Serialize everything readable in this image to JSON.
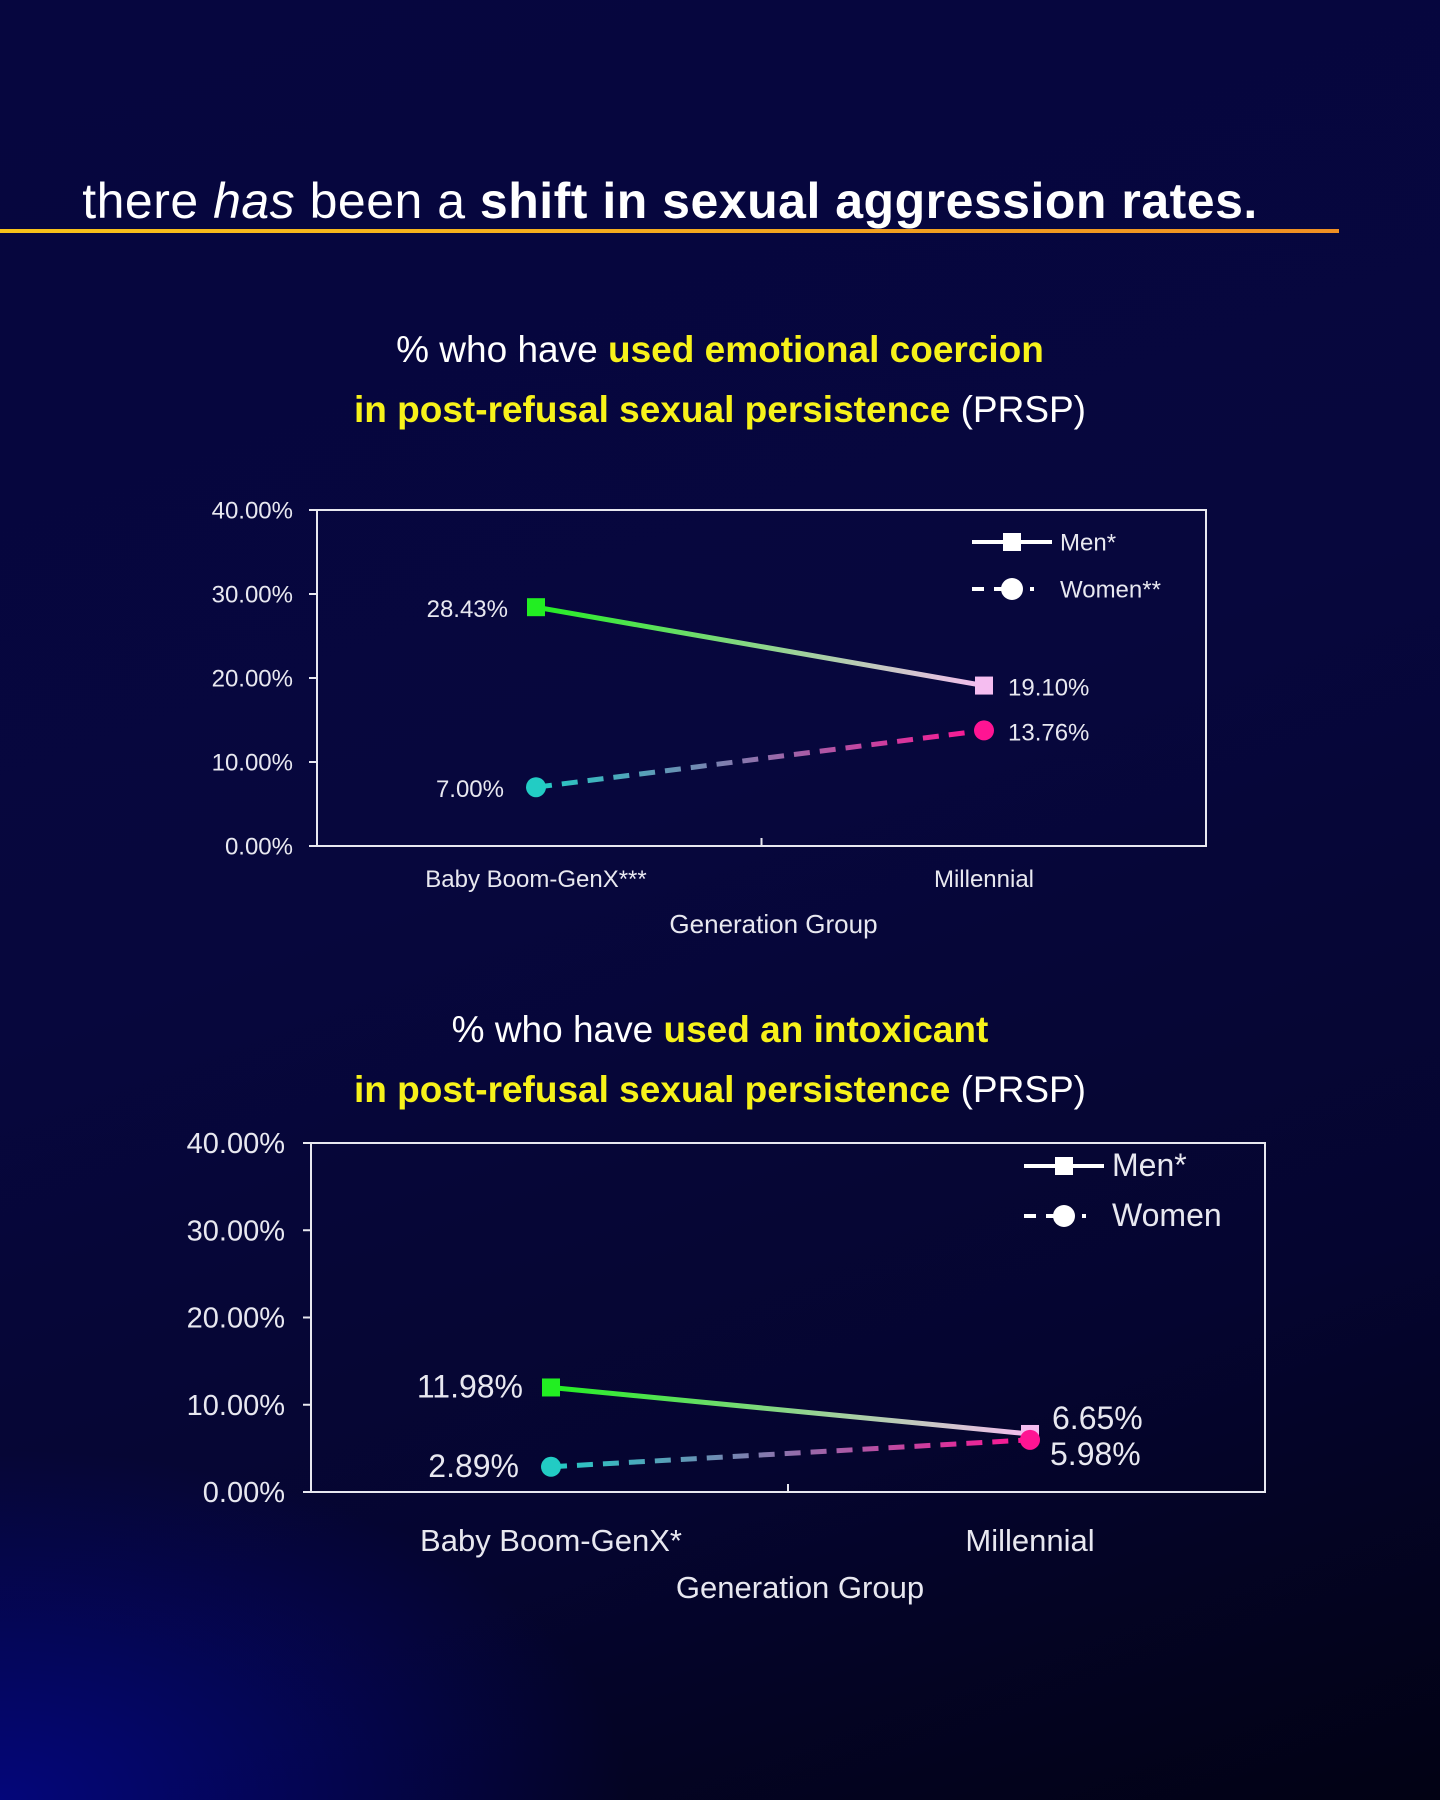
{
  "heading": {
    "pre": "there ",
    "italic": "has",
    "mid": " been a ",
    "bold": "shift in sexual aggression rates."
  },
  "colors": {
    "men_start": "#22ee22",
    "men_end": "#f5bdf0",
    "women_start": "#22ccc4",
    "women_end": "#ff1493",
    "underline": "#f2a41f",
    "highlight": "#f7f21a"
  },
  "chart_data": [
    {
      "type": "line",
      "title_parts": {
        "pre": "% who have ",
        "hl1": "used emotional coercion",
        "hl2": "in post-refusal sexual persistence",
        "post": " (PRSP)"
      },
      "categories": [
        "Baby Boom-GenX***",
        "Millennial"
      ],
      "xlabel": "Generation Group",
      "ylabel": "",
      "ylim": [
        0,
        40
      ],
      "yticks": [
        "0.00%",
        "10.00%",
        "20.00%",
        "30.00%",
        "40.00%"
      ],
      "legend_position": "top-right",
      "series": [
        {
          "name": "Men*",
          "values": [
            28.43,
            19.1
          ],
          "labels": [
            "28.43%",
            "19.10%"
          ],
          "style": "solid-square"
        },
        {
          "name": "Women**",
          "values": [
            7.0,
            13.76
          ],
          "labels": [
            "7.00%",
            "13.76%"
          ],
          "style": "dashed-circle"
        }
      ]
    },
    {
      "type": "line",
      "title_parts": {
        "pre": "% who have ",
        "hl1": "used an intoxicant",
        "hl2": "in post-refusal sexual persistence",
        "post": " (PRSP)"
      },
      "categories": [
        "Baby Boom-GenX*",
        "Millennial"
      ],
      "xlabel": "Generation Group",
      "ylabel": "",
      "ylim": [
        0,
        40
      ],
      "yticks": [
        "0.00%",
        "10.00%",
        "20.00%",
        "30.00%",
        "40.00%"
      ],
      "legend_position": "top-right",
      "series": [
        {
          "name": "Men*",
          "values": [
            11.98,
            6.65
          ],
          "labels": [
            "11.98%",
            "6.65%"
          ],
          "style": "solid-square"
        },
        {
          "name": "Women",
          "values": [
            2.89,
            5.98
          ],
          "labels": [
            "2.89%",
            "5.98%"
          ],
          "style": "dashed-circle"
        }
      ]
    }
  ]
}
